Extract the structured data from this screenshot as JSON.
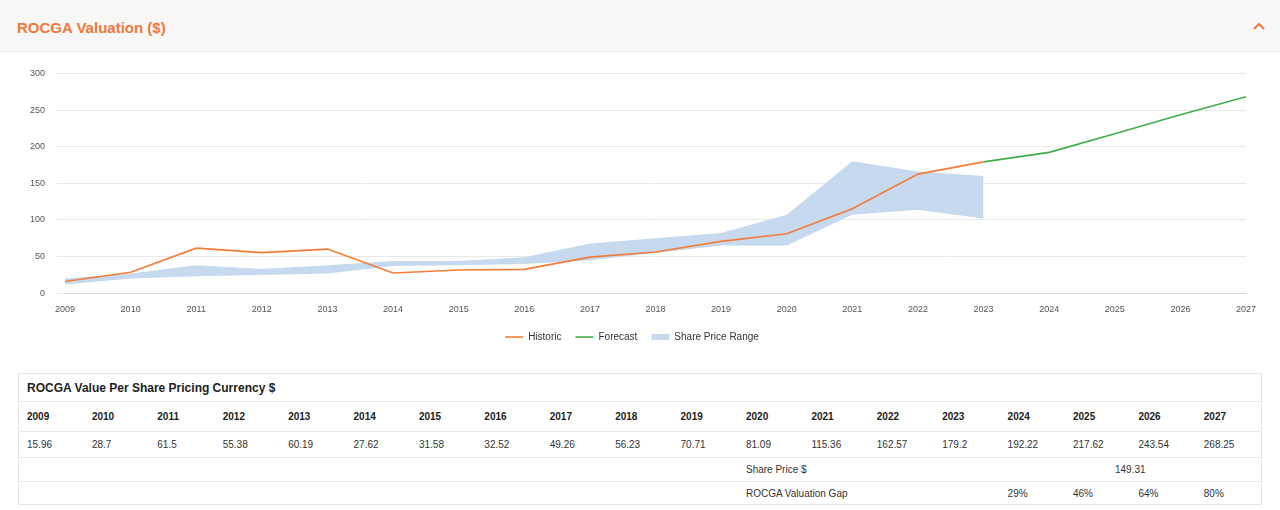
{
  "chart_data": {
    "type": "line",
    "title": "ROCGA Valuation ($)",
    "categories": [
      "2009",
      "2010",
      "2011",
      "2012",
      "2013",
      "2014",
      "2015",
      "2016",
      "2017",
      "2018",
      "2019",
      "2020",
      "2021",
      "2022",
      "2023",
      "2024",
      "2025",
      "2026",
      "2027"
    ],
    "series": [
      {
        "name": "Historic",
        "type": "line",
        "color": "#f27c38",
        "values": [
          15.96,
          28.7,
          61.5,
          55.38,
          60.19,
          27.62,
          31.58,
          32.52,
          49.26,
          56.23,
          70.71,
          81.09,
          115.36,
          162.57,
          179.2,
          null,
          null,
          null,
          null
        ]
      },
      {
        "name": "Forecast",
        "type": "line",
        "color": "#3fae49",
        "values": [
          null,
          null,
          null,
          null,
          null,
          null,
          null,
          null,
          null,
          null,
          null,
          null,
          null,
          null,
          179.2,
          192.22,
          217.62,
          243.54,
          268.25
        ]
      },
      {
        "name": "Share Price Range",
        "type": "range",
        "color": "#c6d9ee",
        "low": [
          12,
          20,
          23,
          25,
          27,
          37,
          38,
          40,
          45,
          55,
          65,
          65,
          107,
          114,
          102,
          null,
          null,
          null,
          null
        ],
        "high": [
          20,
          27,
          38,
          33,
          38,
          44,
          44,
          49,
          68,
          75,
          82,
          107,
          180,
          166,
          160,
          null,
          null,
          null,
          null
        ]
      }
    ],
    "ylim": [
      0,
      300
    ],
    "yticks": [
      0,
      50,
      100,
      150,
      200,
      250,
      300
    ],
    "grid": true,
    "legend": "bottom"
  },
  "table": {
    "title": "ROCGA Value Per Share Pricing Currency $",
    "columns": [
      "2009",
      "2010",
      "2011",
      "2012",
      "2013",
      "2014",
      "2015",
      "2016",
      "2017",
      "2018",
      "2019",
      "2020",
      "2021",
      "2022",
      "2023",
      "2024",
      "2025",
      "2026",
      "2027"
    ],
    "values": [
      15.96,
      28.7,
      61.5,
      55.38,
      60.19,
      27.62,
      31.58,
      32.52,
      49.26,
      56.23,
      70.71,
      81.09,
      115.36,
      162.57,
      179.2,
      192.22,
      217.62,
      243.54,
      268.25
    ],
    "share_price": {
      "label": "Share Price $",
      "value": 149.31
    },
    "valuation_gap": {
      "label": "ROCGA Valuation Gap",
      "values": [
        "29%",
        "46%",
        "64%",
        "80%"
      ]
    }
  }
}
